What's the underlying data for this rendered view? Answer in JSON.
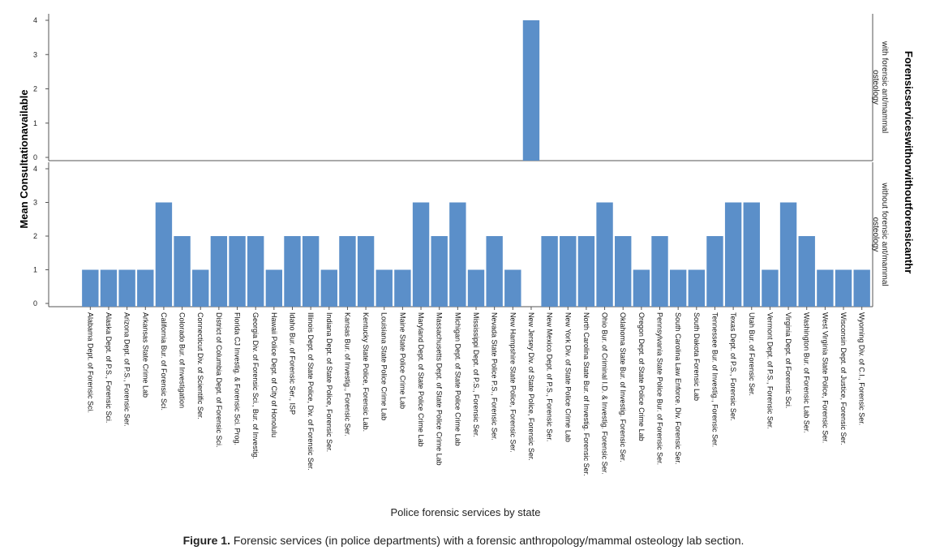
{
  "chart_data": {
    "type": "bar",
    "ylabel": "Mean Consultationavailable",
    "xlabel": "Police forensic services by state",
    "panel_variable": "Forensicserviceswithorwithoutforensicanthr",
    "panels": [
      {
        "label": "with forensic ant/mammal osteology",
        "ylim": [
          0,
          4
        ],
        "yticks": [
          0,
          1,
          2,
          3,
          4
        ]
      },
      {
        "label": "without forensic ant/mammal osteology",
        "ylim": [
          0,
          4
        ],
        "yticks": [
          0,
          1,
          2,
          3,
          4
        ]
      }
    ],
    "categories": [
      "Alabama Dept. of Forensic Sci.",
      "Alaska Dept. of P.S., Forensic Sci.",
      "Arizona Dept. of P.S., Forensic Ser.",
      "Arkansas State Crime Lab",
      "California Bur. of Forensic Sci.",
      "Colorado Bur. of Investigation",
      "Connecticut Div. of Scientific Ser.",
      "District of Columbia Dept. of Forensic Sci.",
      "Florida CJ Investig. & Forensic Sci. Prog.",
      "Georgia Div. of Forensic Sci., Bur. of Investig.",
      "Hawaii Police Dept. of City of Honolulu",
      "Idaho Bur. of Forensic Ser., ISP",
      "Illinois Dept. of State Police, Div. of Forensic Ser.",
      "Indiana Dept. of State Police, Forensic Ser.",
      "Kansas Bur. of Investig., Forensic Ser.",
      "Kentucky State Police, Forensic Lab.",
      "Louisiana State Police Crime Lab",
      "Maine State Police Crime Lab",
      "Maryland Dept. of State Police Crime Lab",
      "Massachusetts Dept. of State Police Crime Lab",
      "Michigan Dept. of State Police Crime Lab",
      "Mississippi Dept. of P.S., Forensic Ser.",
      "Nevada State Police P.S., Forensic Ser.",
      "New Hampshire State Police, Forensic Ser.",
      "New Jersey Div. of State Police, Forensic Ser.",
      "New Mexico Dept. of P.S., Forensic Ser.",
      "New York Div. of State Police Crime Lab",
      "North Carolina State Bur. of Investig. Forensic Ser.",
      "Ohio Bur. of Criminal I.D. & Investig. Forensic Ser.",
      "Oklahoma State Bur. of Investig. Forensic Ser.",
      "Oregon Dept. of State Police Crime Lab",
      "Pennsylvania State Police Bur. of Forensic Ser.",
      "South Carolina Law Enforce. Div. Forensic Ser.",
      "South Dakota Forensic Lab",
      "Tennessee Bur. of Investig., Forensic Ser.",
      "Texas Dept. of P.S., Forensic Ser.",
      "Utah Bur. of Forensic Ser.",
      "Vermont Dept. of P.S., Forensic Ser.",
      "Virginia Dept. of Forensic Sci.",
      "Washington Bur. of Forensic Lab Ser.",
      "West Virginia State Police, Forensic Ser.",
      "Wisconsin Dept. of Justice, Forensic Ser.",
      "Wyoming Div. of C.I., Forensic Ser."
    ],
    "series": [
      {
        "panel": 0,
        "color": "#5b8fc9",
        "values": [
          null,
          null,
          null,
          null,
          null,
          null,
          null,
          null,
          null,
          null,
          null,
          null,
          null,
          null,
          null,
          null,
          null,
          null,
          null,
          null,
          null,
          null,
          null,
          null,
          4,
          null,
          null,
          null,
          null,
          null,
          null,
          null,
          null,
          null,
          null,
          null,
          null,
          null,
          null,
          null,
          null,
          null,
          null
        ]
      },
      {
        "panel": 1,
        "color": "#5b8fc9",
        "values": [
          1,
          1,
          1,
          1,
          3,
          2,
          1,
          2,
          2,
          2,
          1,
          2,
          2,
          1,
          2,
          2,
          1,
          1,
          3,
          2,
          3,
          1,
          2,
          1,
          null,
          2,
          2,
          2,
          3,
          2,
          1,
          2,
          1,
          1,
          2,
          3,
          3,
          1,
          3,
          2,
          1,
          1,
          1
        ]
      }
    ]
  },
  "caption": {
    "label": "Figure 1.",
    "text": "Forensic services (in police departments) with a forensic anthropology/mammal osteology lab section."
  }
}
